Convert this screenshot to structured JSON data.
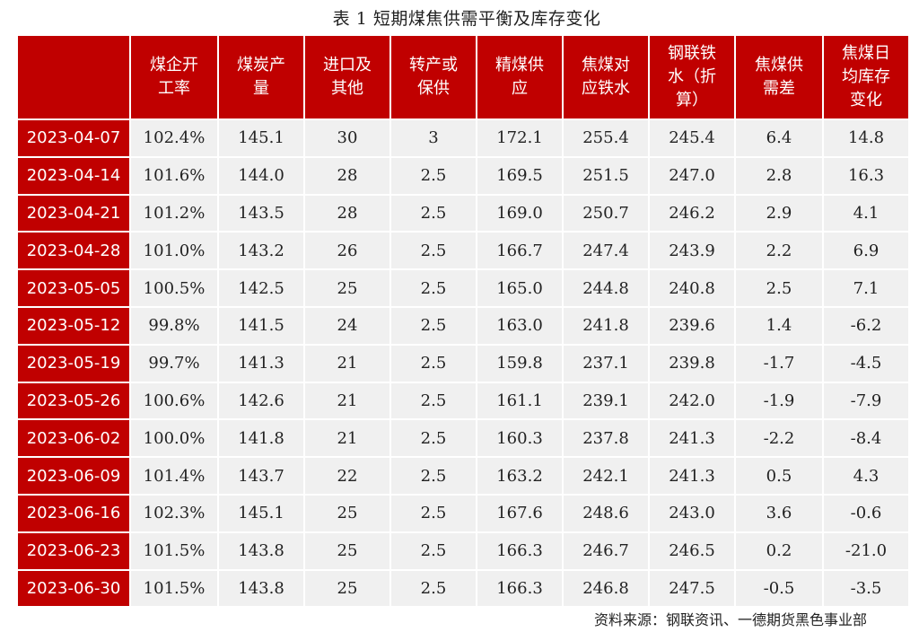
{
  "title": "表 1 短期煤焦供需平衡及库存变化",
  "headers": [
    "",
    "煤企开\n工率",
    "煤炭产\n量",
    "进口及\n其他",
    "转产或\n保供",
    "精煤供\n应",
    "焦煤对\n应铁水",
    "钢联铁\n水（折\n算）",
    "焦煤供\n需差",
    "焦煤日\n均库存\n变化"
  ],
  "rows": [
    [
      "2023-04-07",
      "102.4%",
      "145.1",
      "30",
      "3",
      "172.1",
      "255.4",
      "245.4",
      "6.4",
      "14.8"
    ],
    [
      "2023-04-14",
      "101.6%",
      "144.0",
      "28",
      "2.5",
      "169.5",
      "251.5",
      "247.0",
      "2.8",
      "16.3"
    ],
    [
      "2023-04-21",
      "101.2%",
      "143.5",
      "28",
      "2.5",
      "169.0",
      "250.7",
      "246.2",
      "2.9",
      "4.1"
    ],
    [
      "2023-04-28",
      "101.0%",
      "143.2",
      "26",
      "2.5",
      "166.7",
      "247.4",
      "243.9",
      "2.2",
      "6.9"
    ],
    [
      "2023-05-05",
      "100.5%",
      "142.5",
      "25",
      "2.5",
      "165.0",
      "244.8",
      "240.8",
      "2.5",
      "7.1"
    ],
    [
      "2023-05-12",
      "99.8%",
      "141.5",
      "24",
      "2.5",
      "163.0",
      "241.8",
      "239.6",
      "1.4",
      "-6.2"
    ],
    [
      "2023-05-19",
      "99.7%",
      "141.3",
      "21",
      "2.5",
      "159.8",
      "237.1",
      "239.8",
      "-1.7",
      "-4.5"
    ],
    [
      "2023-05-26",
      "100.6%",
      "142.6",
      "21",
      "2.5",
      "161.1",
      "239.1",
      "242.0",
      "-1.9",
      "-7.9"
    ],
    [
      "2023-06-02",
      "100.0%",
      "141.8",
      "21",
      "2.5",
      "160.3",
      "237.8",
      "241.3",
      "-2.2",
      "-8.4"
    ],
    [
      "2023-06-09",
      "101.4%",
      "143.7",
      "22",
      "2.5",
      "163.2",
      "242.1",
      "241.3",
      "0.5",
      "4.3"
    ],
    [
      "2023-06-16",
      "102.3%",
      "145.1",
      "25",
      "2.5",
      "167.6",
      "248.6",
      "243.0",
      "3.6",
      "-0.6"
    ],
    [
      "2023-06-23",
      "101.5%",
      "143.8",
      "25",
      "2.5",
      "166.3",
      "246.7",
      "246.5",
      "0.2",
      "-21.0"
    ],
    [
      "2023-06-30",
      "101.5%",
      "143.8",
      "25",
      "2.5",
      "166.3",
      "246.8",
      "247.5",
      "-0.5",
      "-3.5"
    ]
  ],
  "source": "资料来源：钢联资讯、一德期货黑色事业部",
  "colors": {
    "header_bg": "#c00000",
    "cell_bg": "#f0f0f0",
    "header_text": "#ffffff"
  }
}
